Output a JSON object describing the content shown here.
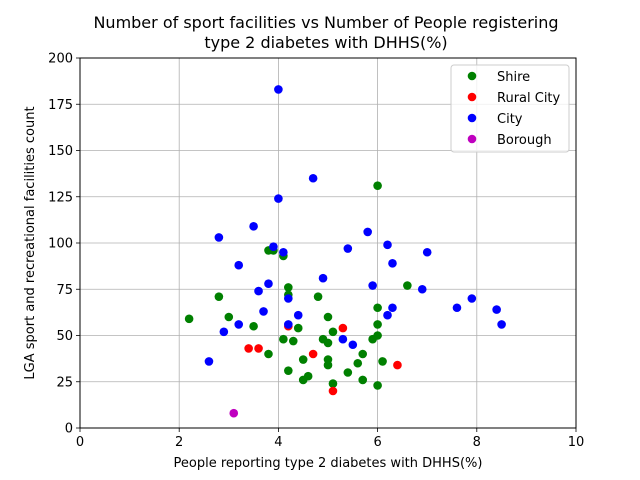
{
  "chart_data": {
    "type": "scatter",
    "title": [
      "Number of sport facilities vs Number of People registering",
      "type 2 diabetes with DHHS(%)"
    ],
    "xlabel": "People reporting type 2 diabetes with DHHS(%)",
    "ylabel": "LGA sport and recreational facilities count",
    "xlim": [
      0,
      10
    ],
    "ylim": [
      0,
      200
    ],
    "xticks": [
      0,
      2,
      4,
      6,
      8,
      10
    ],
    "yticks": [
      0,
      25,
      50,
      75,
      100,
      125,
      150,
      175,
      200
    ],
    "grid": true,
    "legend_position": "top-right",
    "series": [
      {
        "name": "Shire",
        "color": "#008000",
        "points": [
          [
            2.2,
            59
          ],
          [
            2.8,
            71
          ],
          [
            3.0,
            60
          ],
          [
            3.5,
            55
          ],
          [
            3.8,
            96
          ],
          [
            3.9,
            96
          ],
          [
            3.8,
            40
          ],
          [
            4.1,
            93
          ],
          [
            4.1,
            48
          ],
          [
            4.2,
            76
          ],
          [
            4.2,
            72
          ],
          [
            4.2,
            31
          ],
          [
            4.3,
            47
          ],
          [
            4.4,
            54
          ],
          [
            4.5,
            37
          ],
          [
            4.5,
            26
          ],
          [
            4.6,
            28
          ],
          [
            4.8,
            71
          ],
          [
            4.9,
            48
          ],
          [
            5.0,
            60
          ],
          [
            5.0,
            46
          ],
          [
            5.0,
            37
          ],
          [
            5.0,
            34
          ],
          [
            5.1,
            52
          ],
          [
            5.1,
            24
          ],
          [
            5.4,
            30
          ],
          [
            5.6,
            35
          ],
          [
            5.7,
            40
          ],
          [
            5.7,
            26
          ],
          [
            5.9,
            48
          ],
          [
            6.0,
            131
          ],
          [
            6.0,
            65
          ],
          [
            6.0,
            56
          ],
          [
            6.0,
            50
          ],
          [
            6.0,
            23
          ],
          [
            6.1,
            36
          ],
          [
            6.6,
            77
          ]
        ]
      },
      {
        "name": "Rural City",
        "color": "#ff0000",
        "points": [
          [
            3.4,
            43
          ],
          [
            3.6,
            43
          ],
          [
            4.2,
            55
          ],
          [
            4.7,
            40
          ],
          [
            5.1,
            20
          ],
          [
            5.3,
            54
          ],
          [
            6.4,
            34
          ]
        ]
      },
      {
        "name": "City",
        "color": "#0000ff",
        "points": [
          [
            2.6,
            36
          ],
          [
            2.8,
            103
          ],
          [
            2.9,
            52
          ],
          [
            3.2,
            88
          ],
          [
            3.2,
            56
          ],
          [
            3.5,
            109
          ],
          [
            3.6,
            74
          ],
          [
            3.7,
            63
          ],
          [
            3.8,
            78
          ],
          [
            3.9,
            98
          ],
          [
            4.0,
            183
          ],
          [
            4.0,
            124
          ],
          [
            4.1,
            95
          ],
          [
            4.2,
            70
          ],
          [
            4.2,
            56
          ],
          [
            4.4,
            61
          ],
          [
            4.7,
            135
          ],
          [
            4.9,
            81
          ],
          [
            5.3,
            48
          ],
          [
            5.4,
            97
          ],
          [
            5.5,
            45
          ],
          [
            5.8,
            106
          ],
          [
            5.9,
            77
          ],
          [
            6.2,
            99
          ],
          [
            6.2,
            61
          ],
          [
            6.3,
            89
          ],
          [
            6.3,
            65
          ],
          [
            6.9,
            75
          ],
          [
            7.0,
            95
          ],
          [
            7.6,
            65
          ],
          [
            7.9,
            70
          ],
          [
            8.4,
            64
          ],
          [
            8.5,
            56
          ]
        ]
      },
      {
        "name": "Borough",
        "color": "#bf00bf",
        "points": [
          [
            3.1,
            8
          ]
        ]
      }
    ]
  }
}
